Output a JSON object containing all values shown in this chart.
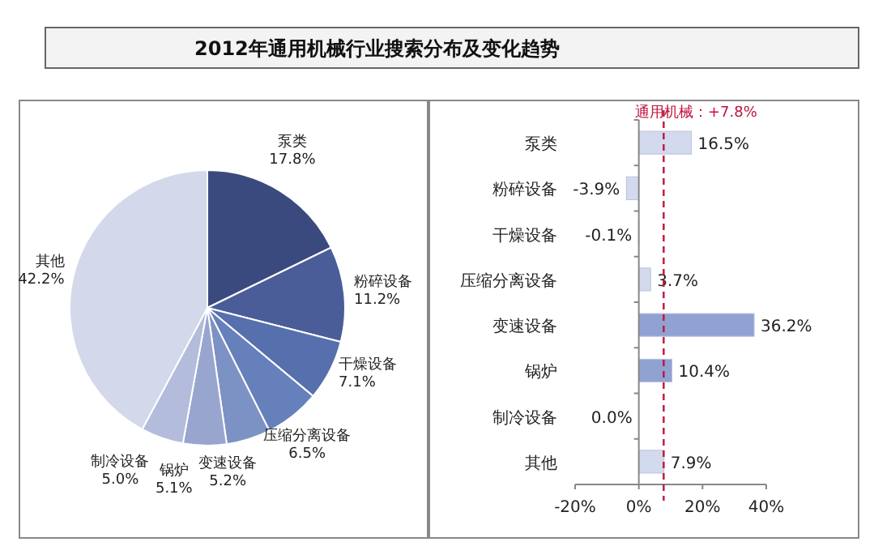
{
  "chart_data": [
    {
      "type": "pie",
      "title": "2012年通用机械行业搜索分布及变化趋势",
      "categories": [
        "泵类",
        "粉碎设备",
        "干燥设备",
        "压缩分离设备",
        "变速设备",
        "锅炉",
        "制冷设备",
        "其他"
      ],
      "values": [
        17.8,
        11.2,
        7.1,
        6.5,
        5.2,
        5.1,
        5.0,
        42.2
      ],
      "colors": [
        "#3b4a7e",
        "#4a5d98",
        "#5670ad",
        "#6680bb",
        "#7d92c4",
        "#98a6cf",
        "#b3bcdb",
        "#d3d8ea"
      ],
      "value_labels": [
        "17.8%",
        "11.2%",
        "7.1%",
        "6.5%",
        "5.2%",
        "5.1%",
        "5.0%",
        "42.2%"
      ]
    },
    {
      "type": "bar",
      "orientation": "horizontal",
      "categories": [
        "泵类",
        "粉碎设备",
        "干燥设备",
        "压缩分离设备",
        "变速设备",
        "锅炉",
        "制冷设备",
        "其他"
      ],
      "values": [
        16.5,
        -3.9,
        -0.1,
        3.7,
        36.2,
        10.4,
        0.0,
        7.9
      ],
      "colors": [
        "#d3daee",
        "#d3daee",
        "#d3daee",
        "#d3daee",
        "#8fa2d2",
        "#8fa2d2",
        "#d3daee",
        "#d3daee"
      ],
      "value_labels": [
        "16.5%",
        "-3.9%",
        "-0.1%",
        "3.7%",
        "36.2%",
        "10.4%",
        "0.0%",
        "7.9%"
      ],
      "xlim": [
        -20,
        40
      ],
      "xticks": [
        {
          "value": -20,
          "label": "-20%"
        },
        {
          "value": 0,
          "label": "0%"
        },
        {
          "value": 20,
          "label": "20%"
        },
        {
          "value": 40,
          "label": "40%"
        }
      ],
      "ref_lines": [
        {
          "axis": "x",
          "value": 7.8,
          "label": "通用机械：+7.8%",
          "color": "#c0143c",
          "line_style": "dashed"
        }
      ]
    }
  ]
}
